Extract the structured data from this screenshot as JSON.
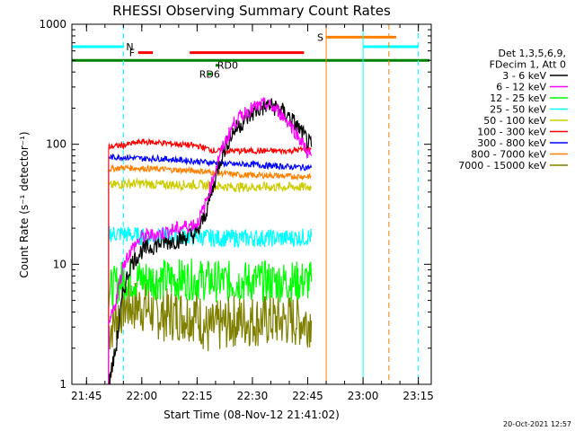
{
  "chart_data": {
    "type": "line",
    "title": "RHESSI Observing Summary Count Rates",
    "xlabel": "Start Time (08-Nov-12 21:41:02)",
    "ylabel": "Count Rate (s⁻¹ detector⁻¹)",
    "yscale": "log",
    "ylim": [
      1,
      1000
    ],
    "xlim": [
      "21:41:02",
      "23:18:30"
    ],
    "x_ticks": [
      "21:45",
      "22:00",
      "22:15",
      "22:30",
      "22:45",
      "23:00",
      "23:15"
    ],
    "y_ticks": [
      "1",
      "10",
      "100",
      "1000"
    ],
    "grid": false,
    "legend_position": "right",
    "legend_header": [
      "Det 1,3,5,6,9,",
      "FDecim 1, Att 0"
    ],
    "timestamp": "20-Oct-2021 12:57",
    "flags": [
      {
        "label": "N",
        "color": "#00ffff",
        "intervals": [
          [
            "21:41",
            "21:55"
          ],
          [
            "23:00",
            "23:15"
          ]
        ],
        "level": 650
      },
      {
        "label": "F",
        "color": "#ff0000",
        "intervals": [
          [
            "21:59",
            "22:03"
          ]
        ],
        "level": 580
      },
      {
        "label": "",
        "color": "#ff0000",
        "intervals": [
          [
            "22:13",
            "22:44"
          ]
        ],
        "level": 580
      },
      {
        "label": "RD0",
        "color": "#008000",
        "intervals": [
          [
            "22:20",
            "22:21"
          ]
        ],
        "level": 455
      },
      {
        "label": "RD6",
        "color": "#008000",
        "intervals": [
          [
            "22:18",
            "22:19"
          ]
        ],
        "level": 385
      },
      {
        "label": "S",
        "color": "#ff8000",
        "intervals": [
          [
            "22:50",
            "23:09"
          ]
        ],
        "level": 780
      },
      {
        "label": "",
        "color": "#008000",
        "intervals": [
          [
            "21:41",
            "23:18"
          ]
        ],
        "level": 500
      }
    ],
    "vlines": [
      {
        "time": "21:41:02",
        "color": "#00ffff",
        "style": "solid"
      },
      {
        "time": "21:55",
        "color": "#00ffff",
        "style": "dashed"
      },
      {
        "time": "22:50",
        "color": "#ff8000",
        "style": "solid"
      },
      {
        "time": "23:00",
        "color": "#00ffff",
        "style": "solid"
      },
      {
        "time": "23:07",
        "color": "#ff8000",
        "style": "dashed"
      },
      {
        "time": "23:15",
        "color": "#00ffff",
        "style": "dashed"
      }
    ],
    "series": [
      {
        "name": "3 - 6 keV",
        "color": "#000000",
        "points": [
          [
            "21:51",
            1
          ],
          [
            "21:53",
            2
          ],
          [
            "21:55",
            6
          ],
          [
            "21:57",
            10
          ],
          [
            "22:00",
            13
          ],
          [
            "22:05",
            15
          ],
          [
            "22:10",
            16
          ],
          [
            "22:15",
            18
          ],
          [
            "22:17",
            25
          ],
          [
            "22:19",
            40
          ],
          [
            "22:21",
            70
          ],
          [
            "22:23",
            100
          ],
          [
            "22:25",
            130
          ],
          [
            "22:28",
            160
          ],
          [
            "22:31",
            190
          ],
          [
            "22:34",
            210
          ],
          [
            "22:37",
            200
          ],
          [
            "22:40",
            170
          ],
          [
            "22:43",
            130
          ],
          [
            "22:45",
            105
          ],
          [
            "22:46",
            95
          ]
        ]
      },
      {
        "name": "6 - 12 keV",
        "color": "#ff00ff",
        "points": [
          [
            "21:51",
            3
          ],
          [
            "21:53",
            5
          ],
          [
            "21:55",
            10
          ],
          [
            "21:57",
            13
          ],
          [
            "22:00",
            17
          ],
          [
            "22:05",
            18
          ],
          [
            "22:10",
            20
          ],
          [
            "22:15",
            22
          ],
          [
            "22:17",
            30
          ],
          [
            "22:19",
            48
          ],
          [
            "22:21",
            80
          ],
          [
            "22:23",
            110
          ],
          [
            "22:25",
            150
          ],
          [
            "22:28",
            185
          ],
          [
            "22:31",
            205
          ],
          [
            "22:34",
            215
          ],
          [
            "22:37",
            190
          ],
          [
            "22:40",
            150
          ],
          [
            "22:43",
            110
          ],
          [
            "22:45",
            85
          ],
          [
            "22:46",
            80
          ]
        ]
      },
      {
        "name": "12 - 25 keV",
        "color": "#00ff00",
        "points": [
          [
            "21:51",
            6
          ],
          [
            "21:55",
            7.5
          ],
          [
            "22:00",
            7.5
          ],
          [
            "22:05",
            7.5
          ],
          [
            "22:10",
            7.5
          ],
          [
            "22:15",
            7.5
          ],
          [
            "22:20",
            7.2
          ],
          [
            "22:25",
            7.2
          ],
          [
            "22:30",
            7.2
          ],
          [
            "22:35",
            7.2
          ],
          [
            "22:40",
            7.2
          ],
          [
            "22:46",
            7.2
          ]
        ]
      },
      {
        "name": "25 - 50 keV",
        "color": "#00ffff",
        "points": [
          [
            "21:51",
            18
          ],
          [
            "21:55",
            18
          ],
          [
            "22:00",
            17
          ],
          [
            "22:05",
            17
          ],
          [
            "22:10",
            17
          ],
          [
            "22:15",
            17
          ],
          [
            "22:20",
            16.5
          ],
          [
            "22:25",
            16.5
          ],
          [
            "22:30",
            16.5
          ],
          [
            "22:35",
            16.5
          ],
          [
            "22:40",
            16.5
          ],
          [
            "22:46",
            17
          ]
        ]
      },
      {
        "name": "50 - 100 keV",
        "color": "#cccc00",
        "points": [
          [
            "21:51",
            45
          ],
          [
            "21:55",
            47
          ],
          [
            "22:00",
            47
          ],
          [
            "22:05",
            46
          ],
          [
            "22:10",
            46
          ],
          [
            "22:15",
            46
          ],
          [
            "22:20",
            45
          ],
          [
            "22:25",
            44
          ],
          [
            "22:30",
            44
          ],
          [
            "22:35",
            44
          ],
          [
            "22:40",
            44
          ],
          [
            "22:46",
            44
          ]
        ]
      },
      {
        "name": "100 - 300 keV",
        "color": "#ff0000",
        "points": [
          [
            "21:51",
            95
          ],
          [
            "21:55",
            98
          ],
          [
            "22:00",
            105
          ],
          [
            "22:05",
            103
          ],
          [
            "22:10",
            100
          ],
          [
            "22:15",
            97
          ],
          [
            "22:20",
            88
          ],
          [
            "22:25",
            88
          ],
          [
            "22:30",
            88
          ],
          [
            "22:35",
            88
          ],
          [
            "22:40",
            88
          ],
          [
            "22:46",
            92
          ]
        ]
      },
      {
        "name": "300 - 800 keV",
        "color": "#0000ff",
        "points": [
          [
            "21:51",
            78
          ],
          [
            "21:55",
            78
          ],
          [
            "22:00",
            76
          ],
          [
            "22:05",
            76
          ],
          [
            "22:10",
            74
          ],
          [
            "22:15",
            72
          ],
          [
            "22:20",
            70
          ],
          [
            "22:25",
            68
          ],
          [
            "22:30",
            68
          ],
          [
            "22:35",
            66
          ],
          [
            "22:40",
            65
          ],
          [
            "22:46",
            64
          ]
        ]
      },
      {
        "name": "800 - 7000 keV",
        "color": "#ff8000",
        "points": [
          [
            "21:51",
            62
          ],
          [
            "21:55",
            64
          ],
          [
            "22:00",
            63
          ],
          [
            "22:05",
            62
          ],
          [
            "22:10",
            61
          ],
          [
            "22:15",
            60
          ],
          [
            "22:20",
            58
          ],
          [
            "22:25",
            56
          ],
          [
            "22:30",
            55
          ],
          [
            "22:35",
            55
          ],
          [
            "22:40",
            54
          ],
          [
            "22:46",
            54
          ]
        ]
      },
      {
        "name": "7000 - 15000 keV",
        "color": "#808000",
        "points": [
          [
            "21:51",
            2.8
          ],
          [
            "21:55",
            4.5
          ],
          [
            "22:00",
            4.5
          ],
          [
            "22:05",
            3.8
          ],
          [
            "22:10",
            3.8
          ],
          [
            "22:15",
            3.8
          ],
          [
            "22:18",
            2.8
          ],
          [
            "22:25",
            3.4
          ],
          [
            "22:30",
            3.4
          ],
          [
            "22:35",
            3.4
          ],
          [
            "22:40",
            3.4
          ],
          [
            "22:46",
            3.4
          ]
        ]
      }
    ]
  }
}
